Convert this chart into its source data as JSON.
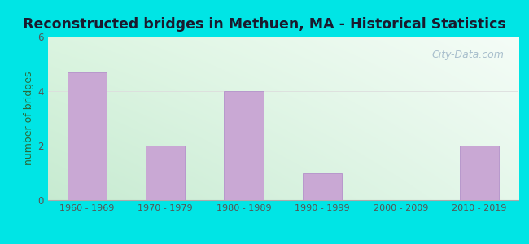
{
  "title": "Reconstructed bridges in Methuen, MA - Historical Statistics",
  "categories": [
    "1960 - 1969",
    "1970 - 1979",
    "1980 - 1989",
    "1990 - 1999",
    "2000 - 2009",
    "2010 - 2019"
  ],
  "values": [
    4.7,
    2,
    4,
    1,
    0,
    2
  ],
  "bar_color": "#c9a8d4",
  "bar_edgecolor": "#b898cc",
  "ylabel": "number of bridges",
  "ylim": [
    0,
    6
  ],
  "yticks": [
    0,
    2,
    4,
    6
  ],
  "background_outer": "#00e5e5",
  "title_fontsize": 12.5,
  "ylabel_fontsize": 9,
  "ylabel_color": "#2a6a3a",
  "tick_color": "#555555",
  "watermark_text": "City-Data.com",
  "watermark_color": "#a0b8c8",
  "grid_color": "#dddddd",
  "grad_top_left": "#d8f0d8",
  "grad_top_right": "#f8fcf8",
  "grad_bottom_left": "#c0e8c8",
  "grad_bottom_right": "#e8f8ee"
}
